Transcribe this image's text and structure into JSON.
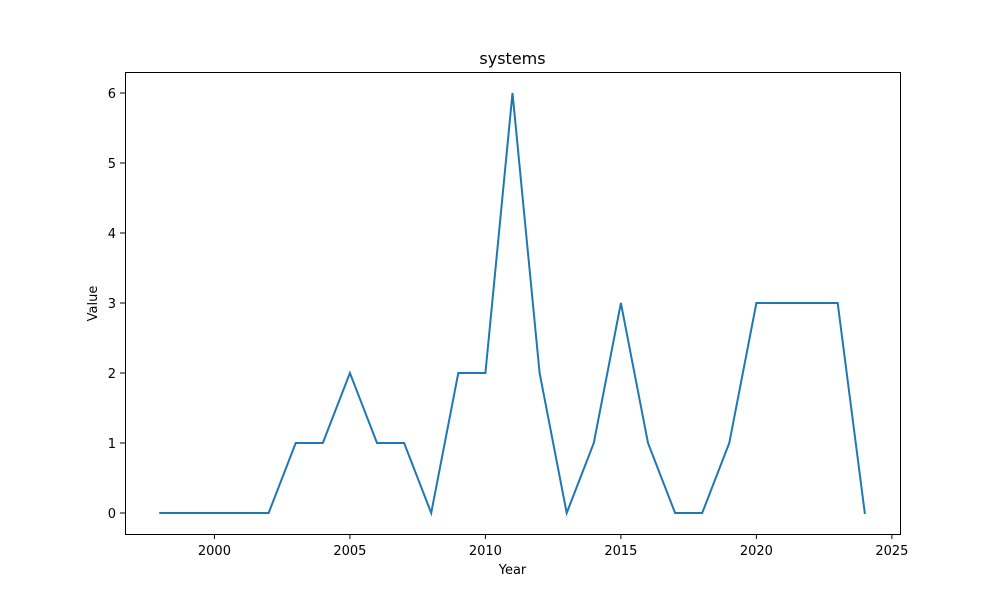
{
  "chart_data": {
    "type": "line",
    "title": "systems",
    "xlabel": "Year",
    "ylabel": "Value",
    "xlim": [
      1996.7,
      2025.3
    ],
    "ylim": [
      -0.3,
      6.3
    ],
    "xticks": [
      2000,
      2005,
      2010,
      2015,
      2020,
      2025
    ],
    "yticks": [
      0,
      1,
      2,
      3,
      4,
      5,
      6
    ],
    "grid": false,
    "series": [
      {
        "color": "#1f77b4",
        "x": [
          1998,
          1999,
          2000,
          2001,
          2002,
          2003,
          2004,
          2005,
          2006,
          2007,
          2008,
          2009,
          2010,
          2011,
          2012,
          2013,
          2014,
          2015,
          2016,
          2017,
          2018,
          2019,
          2020,
          2021,
          2022,
          2023,
          2024
        ],
        "values": [
          0,
          0,
          0,
          0,
          0,
          1,
          1,
          2,
          1,
          1,
          0,
          2,
          2,
          6,
          2,
          0,
          1,
          3,
          1,
          0,
          0,
          1,
          3,
          3,
          3,
          3,
          0
        ]
      }
    ]
  }
}
